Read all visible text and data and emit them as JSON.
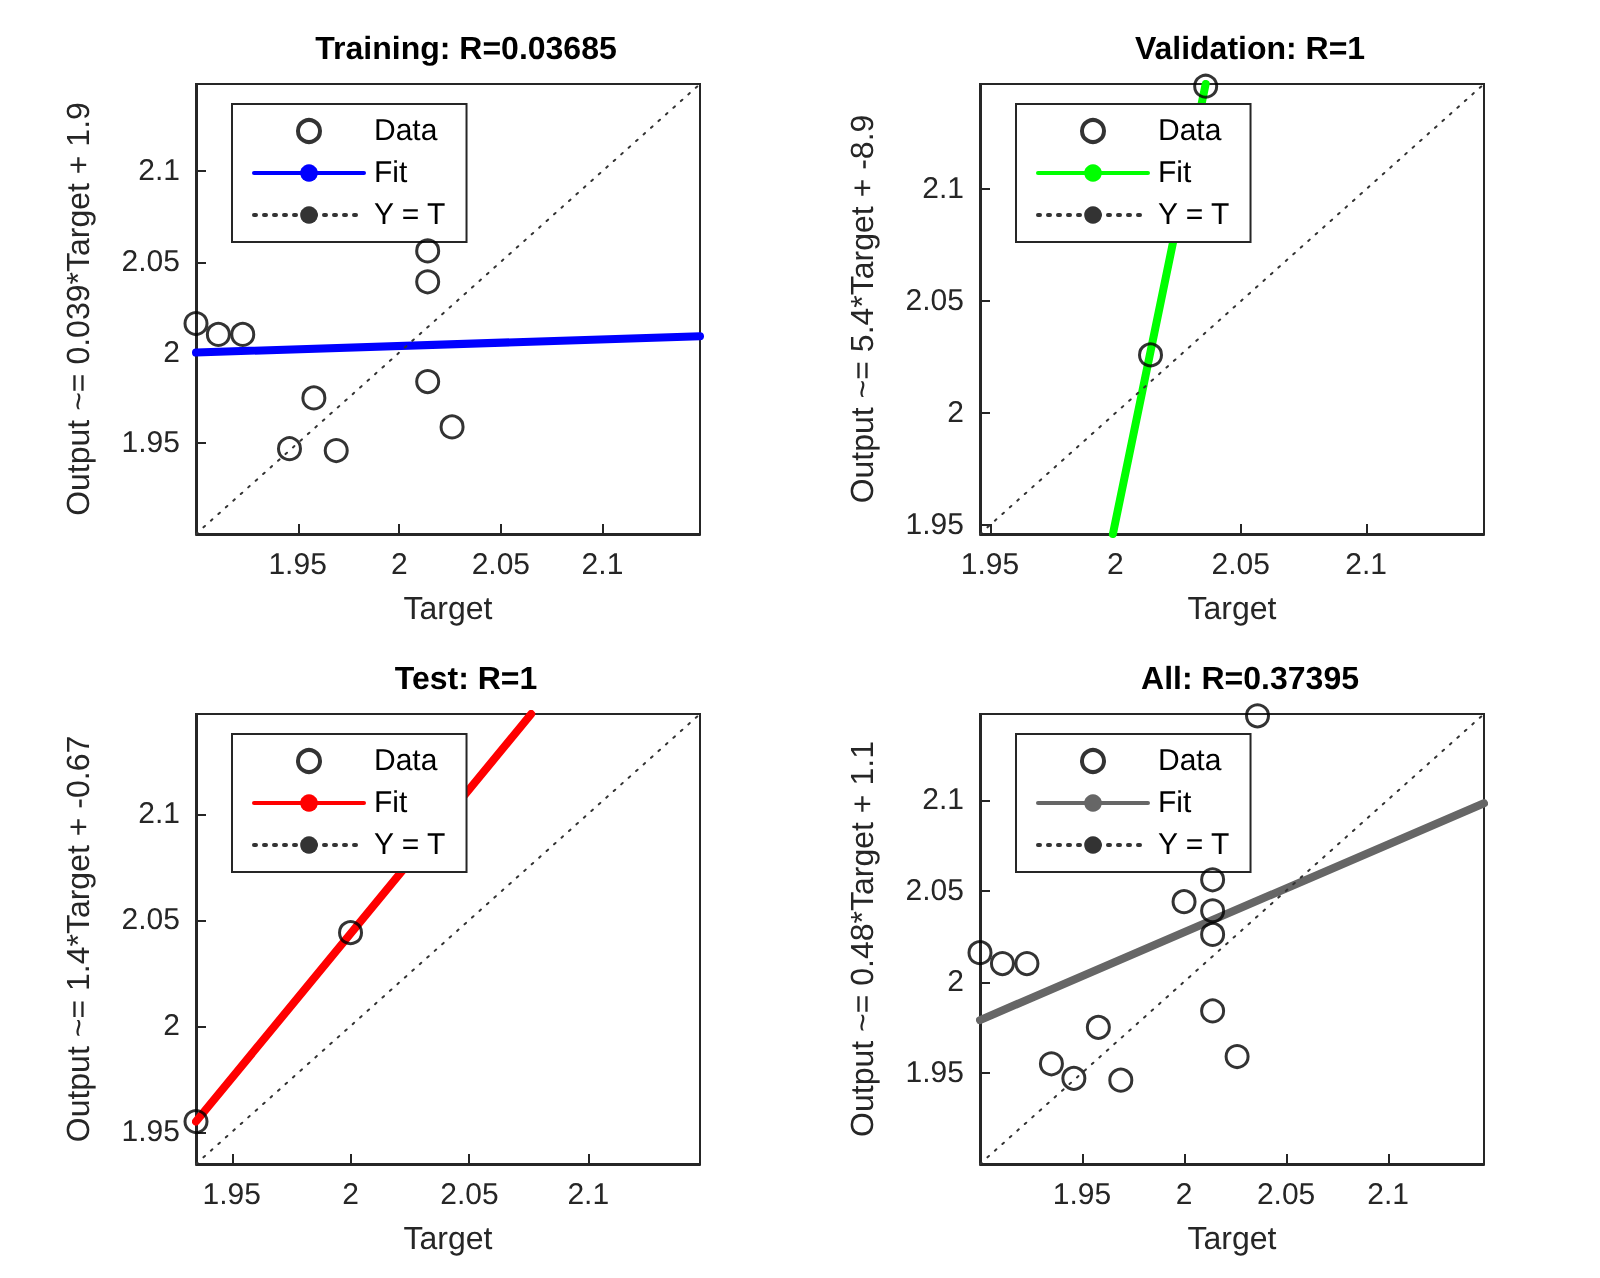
{
  "chart_data": [
    {
      "type": "scatter",
      "title": "Training: R=0.03685",
      "xlabel": "Target",
      "ylabel": "Output ~= 0.039*Target + 1.9",
      "xlim": [
        1.9,
        2.148
      ],
      "ylim": [
        1.9,
        2.148
      ],
      "xticks": [
        1.95,
        2,
        2.05,
        2.1
      ],
      "yticks": [
        1.95,
        2,
        2.05,
        2.1
      ],
      "legend": "top left",
      "grid": false,
      "series": [
        {
          "name": "Data",
          "color": "#000000",
          "marker": "circle",
          "x": [
            1.9,
            1.911,
            1.923,
            1.958,
            1.946,
            1.969,
            2.014,
            2.014,
            2.014,
            2.026
          ],
          "values": [
            2.016,
            2.01,
            2.01,
            1.975,
            1.947,
            1.946,
            2.056,
            2.039,
            1.984,
            1.959
          ]
        },
        {
          "name": "Fit",
          "type": "line",
          "color": "#0000ff",
          "marker": "none",
          "line_style": "solid",
          "x": [
            1.9,
            2.148
          ],
          "values": [
            2.0,
            2.009
          ]
        },
        {
          "name": "Y = T",
          "type": "line",
          "color": "#333333",
          "marker": "none",
          "line_style": "dotted",
          "x": [
            1.9,
            2.148
          ],
          "values": [
            1.9,
            2.148
          ]
        }
      ]
    },
    {
      "type": "scatter",
      "title": "Validation: R=1",
      "xlabel": "Target",
      "ylabel": "Output ~= 5.4*Target + -8.9",
      "xlim": [
        1.946,
        2.147
      ],
      "ylim": [
        1.946,
        2.147
      ],
      "xticks": [
        1.95,
        2,
        2.05,
        2.1
      ],
      "yticks": [
        1.95,
        2,
        2.05,
        2.1
      ],
      "legend": "top left",
      "grid": false,
      "series": [
        {
          "name": "Data",
          "color": "#000000",
          "marker": "circle",
          "x": [
            2.014,
            2.036
          ],
          "values": [
            2.026,
            2.146
          ]
        },
        {
          "name": "Fit",
          "type": "line",
          "color": "#00ff00",
          "marker": "none",
          "line_style": "solid",
          "x": [
            1.999,
            2.036
          ],
          "values": [
            1.946,
            2.147
          ]
        },
        {
          "name": "Y = T",
          "type": "line",
          "color": "#333333",
          "marker": "none",
          "line_style": "dotted",
          "x": [
            1.946,
            2.147
          ],
          "values": [
            1.946,
            2.147
          ]
        }
      ]
    },
    {
      "type": "scatter",
      "title": "Test: R=1",
      "xlabel": "Target",
      "ylabel": "Output ~= 1.4*Target + -0.67",
      "xlim": [
        1.935,
        2.147
      ],
      "ylim": [
        1.935,
        2.147
      ],
      "xticks": [
        1.95,
        2,
        2.05,
        2.1
      ],
      "yticks": [
        1.95,
        2,
        2.05,
        2.1
      ],
      "legend": "top left",
      "grid": false,
      "series": [
        {
          "name": "Data",
          "color": "#000000",
          "marker": "circle",
          "x": [
            1.935,
            2.0
          ],
          "values": [
            1.955,
            2.044
          ]
        },
        {
          "name": "Fit",
          "type": "line",
          "color": "#ff0000",
          "marker": "none",
          "line_style": "solid",
          "x": [
            1.935,
            2.076
          ],
          "values": [
            1.955,
            2.147
          ]
        },
        {
          "name": "Y = T",
          "type": "line",
          "color": "#333333",
          "marker": "none",
          "line_style": "dotted",
          "x": [
            1.935,
            2.147
          ],
          "values": [
            1.935,
            2.147
          ]
        }
      ]
    },
    {
      "type": "scatter",
      "title": "All: R=0.37395",
      "xlabel": "Target",
      "ylabel": "Output ~= 0.48*Target + 1.1",
      "xlim": [
        1.9,
        2.147
      ],
      "ylim": [
        1.9,
        2.147
      ],
      "xticks": [
        1.95,
        2,
        2.05,
        2.1
      ],
      "yticks": [
        1.95,
        2,
        2.05,
        2.1
      ],
      "legend": "top left",
      "grid": false,
      "series": [
        {
          "name": "Data",
          "color": "#000000",
          "marker": "circle",
          "x": [
            1.9,
            1.911,
            1.923,
            1.958,
            1.946,
            1.969,
            2.014,
            2.014,
            2.014,
            2.026,
            2.014,
            2.036,
            1.935,
            2.0
          ],
          "values": [
            2.016,
            2.01,
            2.01,
            1.975,
            1.947,
            1.946,
            2.056,
            2.039,
            1.984,
            1.959,
            2.026,
            2.146,
            1.955,
            2.044
          ]
        },
        {
          "name": "Fit",
          "type": "line",
          "color": "#666666",
          "marker": "none",
          "line_style": "solid",
          "x": [
            1.9,
            2.147
          ],
          "values": [
            1.979,
            2.098
          ]
        },
        {
          "name": "Y = T",
          "type": "line",
          "color": "#333333",
          "marker": "none",
          "line_style": "dotted",
          "x": [
            1.9,
            2.147
          ],
          "values": [
            1.9,
            2.147
          ]
        }
      ]
    }
  ]
}
